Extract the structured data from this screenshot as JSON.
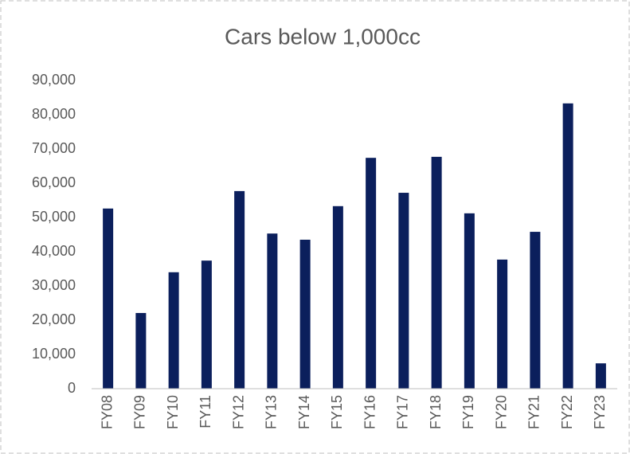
{
  "chart_data": {
    "type": "bar",
    "title": "Cars below 1,000cc",
    "categories": [
      "FY08",
      "FY09",
      "FY10",
      "FY11",
      "FY12",
      "FY13",
      "FY14",
      "FY15",
      "FY16",
      "FY17",
      "FY18",
      "FY19",
      "FY20",
      "FY21",
      "FY22",
      "FY23"
    ],
    "values": [
      52600,
      22100,
      34000,
      37400,
      57700,
      45300,
      43500,
      53300,
      67400,
      57200,
      67700,
      51200,
      37700,
      45800,
      83300,
      7400
    ],
    "color": "#0b1f5c",
    "ylim": [
      0,
      90000
    ],
    "yticks": [
      0,
      {
        "value": 10000,
        "label": "10,000"
      },
      {
        "value": 20000,
        "label": "20,000"
      },
      {
        "value": 30000,
        "label": "30,000"
      },
      {
        "value": 40000,
        "label": "40,000"
      },
      {
        "value": 50000,
        "label": "50,000"
      },
      {
        "value": 60000,
        "label": "60,000"
      },
      {
        "value": 70000,
        "label": "70,000"
      },
      {
        "value": 80000,
        "label": "80,000"
      },
      {
        "value": 90000,
        "label": "90,000"
      }
    ],
    "grid": false
  }
}
